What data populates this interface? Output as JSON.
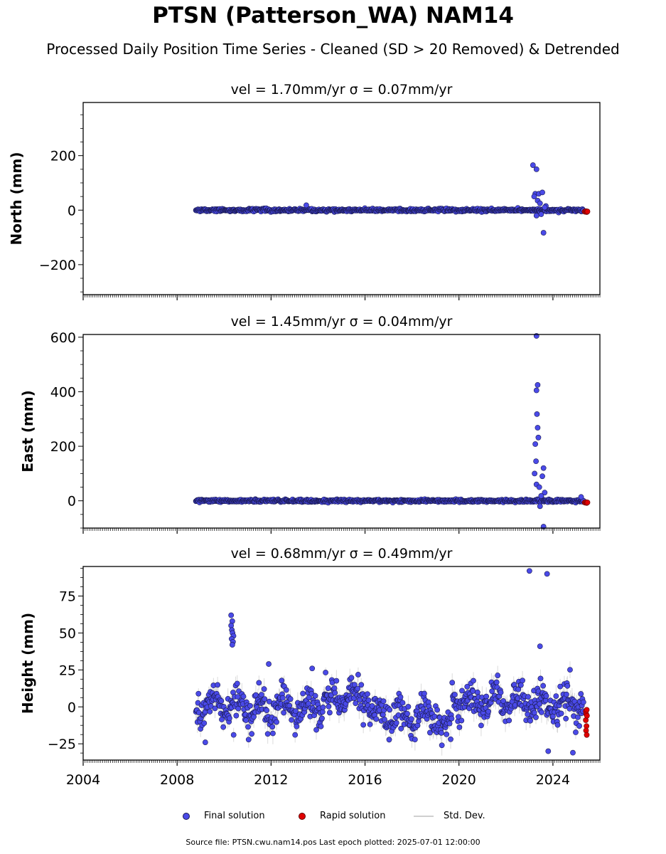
{
  "title": "PTSN (Patterson_WA) NAM14",
  "subtitle": "Processed Daily Position Time Series - Cleaned (SD > 20 Removed) & Detrended",
  "colors": {
    "final": "#4a4ae8",
    "final_edge": "#1a1a50",
    "rapid": "#e00000",
    "std": "#bdbdbd"
  },
  "legend": {
    "final_label": "Final solution",
    "rapid_label": "Rapid solution",
    "std_label": "Std. Dev."
  },
  "footnote": "Source file: PTSN.cwu.nam14.pos  Last epoch plotted: 2025-07-01 12:00:00",
  "chart_data": [
    {
      "type": "scatter",
      "panel_title": "vel = 1.70mm/yr   σ = 0.07mm/yr",
      "ylabel": "North (mm)",
      "xlim": [
        2004.0,
        2026.0
      ],
      "ylim": [
        -310,
        395
      ],
      "yticks": [
        -200,
        0,
        200
      ],
      "ytick_labels": [
        "−200",
        "0",
        "200"
      ],
      "xticks": [
        2004,
        2008,
        2012,
        2016,
        2020,
        2024
      ],
      "xtick_labels": [],
      "final_range": [
        2008.8,
        2025.3
      ],
      "final_noise_sd": 2.5,
      "std_typical": 1.5,
      "outliers": [
        [
          2013.5,
          18
        ],
        [
          2023.15,
          165
        ],
        [
          2023.3,
          150
        ],
        [
          2023.25,
          60
        ],
        [
          2023.4,
          60
        ],
        [
          2023.2,
          50
        ],
        [
          2023.55,
          65
        ],
        [
          2023.6,
          -83
        ],
        [
          2023.35,
          35
        ],
        [
          2023.45,
          25
        ],
        [
          2023.5,
          -15
        ],
        [
          2023.7,
          15
        ],
        [
          2023.3,
          -20
        ],
        [
          2023.65,
          10
        ]
      ],
      "rapid": [
        [
          2025.35,
          -5
        ],
        [
          2025.38,
          -6
        ],
        [
          2025.41,
          -4
        ],
        [
          2025.44,
          -7
        ],
        [
          2025.47,
          -5
        ]
      ]
    },
    {
      "type": "scatter",
      "panel_title": "vel = 1.45mm/yr   σ = 0.04mm/yr",
      "ylabel": "East (mm)",
      "xlim": [
        2004.0,
        2026.0
      ],
      "ylim": [
        -100,
        610
      ],
      "yticks": [
        0,
        200,
        400,
        600
      ],
      "ytick_labels": [
        "0",
        "200",
        "400",
        "600"
      ],
      "xticks": [
        2004,
        2008,
        2012,
        2016,
        2020,
        2024
      ],
      "xtick_labels": [],
      "final_range": [
        2008.8,
        2025.3
      ],
      "final_noise_sd": 2.5,
      "std_typical": 1.5,
      "outliers": [
        [
          2023.3,
          608
        ],
        [
          2023.35,
          425
        ],
        [
          2023.3,
          405
        ],
        [
          2023.32,
          318
        ],
        [
          2023.35,
          268
        ],
        [
          2023.38,
          232
        ],
        [
          2023.25,
          208
        ],
        [
          2023.28,
          145
        ],
        [
          2023.22,
          100
        ],
        [
          2023.6,
          120
        ],
        [
          2023.55,
          90
        ],
        [
          2023.3,
          60
        ],
        [
          2023.42,
          50
        ],
        [
          2023.65,
          30
        ],
        [
          2023.5,
          18
        ],
        [
          2023.6,
          -95
        ],
        [
          2023.45,
          -20
        ],
        [
          2025.2,
          14
        ]
      ],
      "rapid": [
        [
          2025.35,
          -6
        ],
        [
          2025.38,
          -7
        ],
        [
          2025.41,
          -5
        ],
        [
          2025.44,
          -8
        ],
        [
          2025.47,
          -6
        ]
      ]
    },
    {
      "type": "scatter",
      "panel_title": "vel = 0.68mm/yr   σ = 0.49mm/yr",
      "ylabel": "Height (mm)",
      "xlim": [
        2004.0,
        2026.0
      ],
      "ylim": [
        -36,
        95
      ],
      "yticks": [
        -25,
        0,
        25,
        50,
        75
      ],
      "ytick_labels": [
        "−25",
        "0",
        "25",
        "50",
        "75"
      ],
      "xticks": [
        2004,
        2008,
        2012,
        2016,
        2020,
        2024
      ],
      "xtick_labels": [
        "2004",
        "2008",
        "2012",
        "2016",
        "2020",
        "2024"
      ],
      "final_range": [
        2008.8,
        2025.3
      ],
      "final_noise_sd": 5.5,
      "std_typical": 4.5,
      "seasonal_amplitude": 6,
      "segment_offsets": [
        [
          2008.8,
          2014.2,
          0
        ],
        [
          2014.2,
          2016.2,
          5
        ],
        [
          2016.2,
          2019.2,
          -6
        ],
        [
          2019.2,
          2019.7,
          -16
        ],
        [
          2019.7,
          2022.5,
          4
        ],
        [
          2022.5,
          2025.3,
          2
        ]
      ],
      "outliers": [
        [
          2010.3,
          62
        ],
        [
          2010.35,
          58
        ],
        [
          2010.3,
          55
        ],
        [
          2010.33,
          52
        ],
        [
          2010.36,
          50
        ],
        [
          2010.4,
          48
        ],
        [
          2010.32,
          46
        ],
        [
          2010.38,
          44
        ],
        [
          2010.35,
          42
        ],
        [
          2011.9,
          29
        ],
        [
          2013.75,
          26
        ],
        [
          2009.2,
          -24
        ],
        [
          2023.0,
          92
        ],
        [
          2023.75,
          90
        ],
        [
          2023.45,
          41
        ],
        [
          2023.8,
          -30
        ],
        [
          2024.85,
          -31
        ]
      ],
      "rapid": [
        [
          2025.4,
          -3
        ],
        [
          2025.42,
          -5
        ],
        [
          2025.44,
          -2
        ],
        [
          2025.4,
          -9
        ],
        [
          2025.43,
          -13
        ],
        [
          2025.41,
          -16
        ],
        [
          2025.44,
          -19
        ],
        [
          2025.45,
          -6
        ]
      ]
    }
  ]
}
